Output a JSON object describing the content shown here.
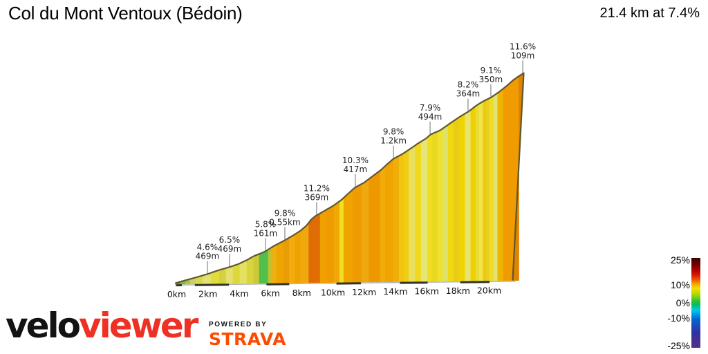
{
  "header": {
    "title": "Col du Mont Ventoux (Bédoin)",
    "summary": "21.4 km at 7.4%"
  },
  "chart_data": {
    "type": "area",
    "title": "Col du Mont Ventoux (Bédoin)",
    "total_distance_km": 21.4,
    "average_gradient_pct": 7.4,
    "x_axis": {
      "unit": "km",
      "ticks": [
        {
          "km": 0,
          "label": "0km"
        },
        {
          "km": 2,
          "label": "2km"
        },
        {
          "km": 4,
          "label": "4km"
        },
        {
          "km": 6,
          "label": "6km"
        },
        {
          "km": 8,
          "label": "8km"
        },
        {
          "km": 10,
          "label": "10km"
        },
        {
          "km": 12,
          "label": "12km"
        },
        {
          "km": 14,
          "label": "14km"
        },
        {
          "km": 16,
          "label": "16km"
        },
        {
          "km": 18,
          "label": "18km"
        },
        {
          "km": 20,
          "label": "20km"
        }
      ]
    },
    "profile_points": [
      {
        "km": 0.0,
        "h": 0.005
      },
      {
        "km": 0.56,
        "h": 0.017
      },
      {
        "km": 1.2,
        "h": 0.03
      },
      {
        "km": 1.93,
        "h": 0.046
      },
      {
        "km": 2.7,
        "h": 0.066
      },
      {
        "km": 3.34,
        "h": 0.08
      },
      {
        "km": 3.85,
        "h": 0.093
      },
      {
        "km": 4.41,
        "h": 0.113
      },
      {
        "km": 4.84,
        "h": 0.132
      },
      {
        "km": 5.18,
        "h": 0.142
      },
      {
        "km": 5.52,
        "h": 0.153
      },
      {
        "km": 5.78,
        "h": 0.166
      },
      {
        "km": 6.12,
        "h": 0.182
      },
      {
        "km": 6.63,
        "h": 0.202
      },
      {
        "km": 7.15,
        "h": 0.225
      },
      {
        "km": 7.7,
        "h": 0.252
      },
      {
        "km": 8.05,
        "h": 0.275
      },
      {
        "km": 8.35,
        "h": 0.305
      },
      {
        "km": 8.6,
        "h": 0.321
      },
      {
        "km": 9.12,
        "h": 0.344
      },
      {
        "km": 9.72,
        "h": 0.371
      },
      {
        "km": 10.19,
        "h": 0.397
      },
      {
        "km": 10.61,
        "h": 0.427
      },
      {
        "km": 11.04,
        "h": 0.457
      },
      {
        "km": 11.6,
        "h": 0.48
      },
      {
        "km": 12.11,
        "h": 0.51
      },
      {
        "km": 12.63,
        "h": 0.54
      },
      {
        "km": 13.05,
        "h": 0.57
      },
      {
        "km": 13.39,
        "h": 0.593
      },
      {
        "km": 13.95,
        "h": 0.616
      },
      {
        "km": 14.46,
        "h": 0.642
      },
      {
        "km": 14.89,
        "h": 0.665
      },
      {
        "km": 15.45,
        "h": 0.692
      },
      {
        "km": 15.66,
        "h": 0.708
      },
      {
        "km": 16.26,
        "h": 0.728
      },
      {
        "km": 16.82,
        "h": 0.758
      },
      {
        "km": 17.38,
        "h": 0.788
      },
      {
        "km": 18.02,
        "h": 0.818
      },
      {
        "km": 18.53,
        "h": 0.848
      },
      {
        "km": 18.96,
        "h": 0.868
      },
      {
        "km": 19.39,
        "h": 0.884
      },
      {
        "km": 19.9,
        "h": 0.911
      },
      {
        "km": 20.37,
        "h": 0.94
      },
      {
        "km": 20.76,
        "h": 0.967
      },
      {
        "km": 21.1,
        "h": 0.985
      },
      {
        "km": 21.4,
        "h": 1.0
      }
    ],
    "gradient_bands": [
      {
        "from_km": 0.0,
        "to_km": 0.33,
        "color": "#44a83c"
      },
      {
        "from_km": 0.33,
        "to_km": 0.6,
        "color": "#7cb83c"
      },
      {
        "from_km": 0.6,
        "to_km": 0.92,
        "color": "#aac244"
      },
      {
        "from_km": 0.92,
        "to_km": 1.25,
        "color": "#ccd05c"
      },
      {
        "from_km": 1.25,
        "to_km": 1.68,
        "color": "#d8d84c"
      },
      {
        "from_km": 1.68,
        "to_km": 2.19,
        "color": "#e2e272"
      },
      {
        "from_km": 2.19,
        "to_km": 2.7,
        "color": "#e0dc3c"
      },
      {
        "from_km": 2.7,
        "to_km": 3.12,
        "color": "#d4d23c"
      },
      {
        "from_km": 3.12,
        "to_km": 3.55,
        "color": "#e4e06c"
      },
      {
        "from_km": 3.55,
        "to_km": 3.97,
        "color": "#dcd83c"
      },
      {
        "from_km": 3.97,
        "to_km": 4.4,
        "color": "#e4e060"
      },
      {
        "from_km": 4.4,
        "to_km": 4.82,
        "color": "#d8d43c"
      },
      {
        "from_km": 4.82,
        "to_km": 5.16,
        "color": "#ccc838"
      },
      {
        "from_km": 5.16,
        "to_km": 5.71,
        "color": "#52bf4a"
      },
      {
        "from_km": 5.71,
        "to_km": 5.92,
        "color": "#c0c030"
      },
      {
        "from_km": 5.92,
        "to_km": 6.23,
        "color": "#eab211"
      },
      {
        "from_km": 6.23,
        "to_km": 6.65,
        "color": "#f0a400"
      },
      {
        "from_km": 6.65,
        "to_km": 7.0,
        "color": "#e89c06"
      },
      {
        "from_km": 7.0,
        "to_km": 7.35,
        "color": "#f2ac10"
      },
      {
        "from_km": 7.35,
        "to_km": 7.7,
        "color": "#efa303"
      },
      {
        "from_km": 7.7,
        "to_km": 8.2,
        "color": "#f0a80e"
      },
      {
        "from_km": 8.2,
        "to_km": 8.9,
        "color": "#e06c04"
      },
      {
        "from_km": 8.9,
        "to_km": 9.3,
        "color": "#f0a000"
      },
      {
        "from_km": 9.3,
        "to_km": 9.75,
        "color": "#ef9c00"
      },
      {
        "from_km": 9.75,
        "to_km": 10.1,
        "color": "#f0a808"
      },
      {
        "from_km": 10.1,
        "to_km": 10.35,
        "color": "#f0e020"
      },
      {
        "from_km": 10.35,
        "to_km": 10.9,
        "color": "#f0a400"
      },
      {
        "from_km": 10.9,
        "to_km": 11.45,
        "color": "#ef9c04"
      },
      {
        "from_km": 11.45,
        "to_km": 11.9,
        "color": "#f0a810"
      },
      {
        "from_km": 11.9,
        "to_km": 12.6,
        "color": "#ee9800"
      },
      {
        "from_km": 12.6,
        "to_km": 12.9,
        "color": "#f0ac08"
      },
      {
        "from_km": 12.9,
        "to_km": 13.4,
        "color": "#f0a400"
      },
      {
        "from_km": 13.4,
        "to_km": 13.75,
        "color": "#eeb008"
      },
      {
        "from_km": 13.75,
        "to_km": 14.05,
        "color": "#f0c410"
      },
      {
        "from_km": 14.05,
        "to_km": 14.35,
        "color": "#f0cc14"
      },
      {
        "from_km": 14.35,
        "to_km": 14.75,
        "color": "#e8e05c"
      },
      {
        "from_km": 14.75,
        "to_km": 15.1,
        "color": "#f0d81c"
      },
      {
        "from_km": 15.1,
        "to_km": 15.5,
        "color": "#e4e678"
      },
      {
        "from_km": 15.5,
        "to_km": 15.8,
        "color": "#f0dc20"
      },
      {
        "from_km": 15.8,
        "to_km": 16.1,
        "color": "#e8d81f"
      },
      {
        "from_km": 16.1,
        "to_km": 16.45,
        "color": "#f0e030"
      },
      {
        "from_km": 16.45,
        "to_km": 16.75,
        "color": "#dce26e"
      },
      {
        "from_km": 16.75,
        "to_km": 17.1,
        "color": "#f0d810"
      },
      {
        "from_km": 17.1,
        "to_km": 17.45,
        "color": "#e8cc18"
      },
      {
        "from_km": 17.45,
        "to_km": 17.8,
        "color": "#f0d400"
      },
      {
        "from_km": 17.8,
        "to_km": 18.15,
        "color": "#e8e474"
      },
      {
        "from_km": 18.15,
        "to_km": 18.45,
        "color": "#f0d000"
      },
      {
        "from_km": 18.45,
        "to_km": 18.68,
        "color": "#e8dc38"
      },
      {
        "from_km": 18.68,
        "to_km": 18.9,
        "color": "#f0e448"
      },
      {
        "from_km": 18.9,
        "to_km": 19.1,
        "color": "#f0c810"
      },
      {
        "from_km": 19.1,
        "to_km": 19.3,
        "color": "#e8d020"
      },
      {
        "from_km": 19.3,
        "to_km": 19.55,
        "color": "#f0dc28"
      },
      {
        "from_km": 19.55,
        "to_km": 19.8,
        "color": "#e0e470"
      },
      {
        "from_km": 19.8,
        "to_km": 20.15,
        "color": "#f0b400"
      },
      {
        "from_km": 20.15,
        "to_km": 21.1,
        "color": "#f09c00"
      },
      {
        "from_km": 21.1,
        "to_km": 21.4,
        "color": "#e08300"
      }
    ],
    "annotations": [
      {
        "km": 1.97,
        "gradient": "4.6%",
        "length": "469m"
      },
      {
        "km": 3.33,
        "gradient": "6.5%",
        "length": "469m"
      },
      {
        "km": 5.54,
        "gradient": "5.8%",
        "length": "161m"
      },
      {
        "km": 6.73,
        "gradient": "9.8%",
        "length": "0.55km"
      },
      {
        "km": 8.68,
        "gradient": "11.2%",
        "length": "369m"
      },
      {
        "km": 11.06,
        "gradient": "10.3%",
        "length": "417m"
      },
      {
        "km": 13.4,
        "gradient": "9.8%",
        "length": "1.2km"
      },
      {
        "km": 15.65,
        "gradient": "7.9%",
        "length": "494m"
      },
      {
        "km": 17.98,
        "gradient": "8.2%",
        "length": "364m"
      },
      {
        "km": 19.38,
        "gradient": "9.1%",
        "length": "350m"
      },
      {
        "km": 21.34,
        "gradient": "11.6%",
        "length": "109m"
      }
    ],
    "baseline_marks": [
      {
        "from_km": 0.05,
        "to_km": 0.4
      },
      {
        "from_km": 1.2,
        "to_km": 3.3
      },
      {
        "from_km": 5.6,
        "to_km": 7.0
      },
      {
        "from_km": 9.9,
        "to_km": 11.4
      },
      {
        "from_km": 13.8,
        "to_km": 15.5
      },
      {
        "from_km": 17.5,
        "to_km": 19.3
      }
    ],
    "legend": {
      "labels": [
        {
          "text": "25%",
          "pos": 0.02
        },
        {
          "text": "10%",
          "pos": 0.3
        },
        {
          "text": "0%",
          "pos": 0.5
        },
        {
          "text": "-10%",
          "pos": 0.67
        },
        {
          "text": "-25%",
          "pos": 0.975
        }
      ],
      "stops": [
        {
          "pos": 0.0,
          "color": "#380400"
        },
        {
          "pos": 0.07,
          "color": "#700000"
        },
        {
          "pos": 0.13,
          "color": "#aa0000"
        },
        {
          "pos": 0.19,
          "color": "#d81800"
        },
        {
          "pos": 0.25,
          "color": "#f06000"
        },
        {
          "pos": 0.29,
          "color": "#f0a800"
        },
        {
          "pos": 0.34,
          "color": "#f0e000"
        },
        {
          "pos": 0.41,
          "color": "#a8d800"
        },
        {
          "pos": 0.48,
          "color": "#30c030"
        },
        {
          "pos": 0.52,
          "color": "#00c060"
        },
        {
          "pos": 0.58,
          "color": "#00c8e8"
        },
        {
          "pos": 0.64,
          "color": "#0090e0"
        },
        {
          "pos": 0.68,
          "color": "#0068d0"
        },
        {
          "pos": 0.76,
          "color": "#2048b8"
        },
        {
          "pos": 0.84,
          "color": "#3030a0"
        },
        {
          "pos": 0.92,
          "color": "#483090"
        },
        {
          "pos": 1.0,
          "color": "#503088"
        }
      ]
    }
  },
  "footer": {
    "brand_black": "velo",
    "brand_red": "viewer",
    "powered_by": "POWERED BY",
    "strava": "STRAVA"
  },
  "colors": {
    "outline": "#5f5731",
    "leader": "#999999",
    "annotation_text": "#222222",
    "axis_text": "#111111",
    "baseline": "#b5b5b5",
    "baseline_mark": "#33332a",
    "brand_red": "#ee3124",
    "strava_orange": "#fc4c02"
  }
}
